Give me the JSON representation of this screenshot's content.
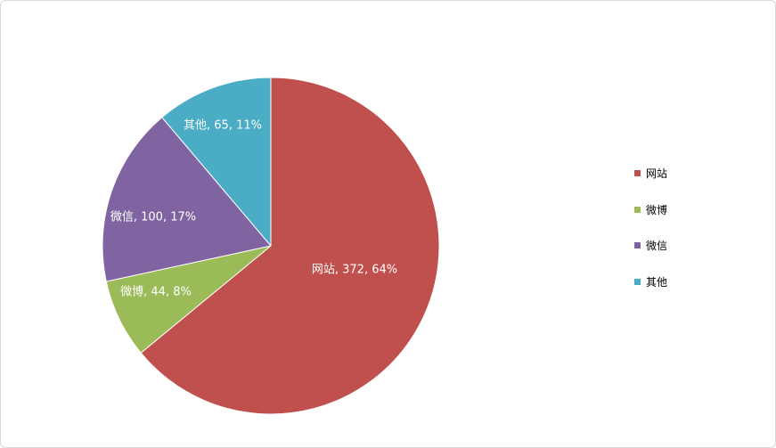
{
  "chart_data": {
    "type": "pie",
    "slices": [
      {
        "name": "网站",
        "value": 372,
        "percent": "64%",
        "label": "网站, 372, 64%",
        "color": "#C0504D"
      },
      {
        "name": "微博",
        "value": 44,
        "percent": "8%",
        "label": "微博, 44, 8%",
        "color": "#9BBB59"
      },
      {
        "name": "微信",
        "value": 100,
        "percent": "17%",
        "label": "微信, 100, 17%",
        "color": "#8064A2"
      },
      {
        "name": "其他",
        "value": 65,
        "percent": "11%",
        "label": "其他, 65, 11%",
        "color": "#4BACC6"
      }
    ],
    "legend_position": "right",
    "start_angle_deg": 0,
    "direction": "clockwise"
  }
}
